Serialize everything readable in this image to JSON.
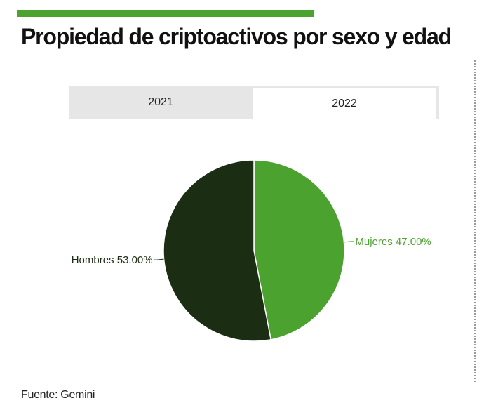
{
  "header": {
    "title": "Propiedad de criptoactivos por sexo y edad"
  },
  "tabs": [
    {
      "label": "2021",
      "active": false
    },
    {
      "label": "2022",
      "active": true
    }
  ],
  "colors": {
    "accent": "#4ba22f",
    "hombres": "#1b2e13",
    "mujeres": "#4ba22f",
    "tab_inactive_bg": "#e6e6e6"
  },
  "chart_data": {
    "type": "pie",
    "categories": [
      "Mujeres",
      "Hombres"
    ],
    "values": [
      47.0,
      53.0
    ],
    "labels": [
      "Mujeres 47.00%",
      "Hombres 53.00%"
    ],
    "colors": [
      "#4ba22f",
      "#1b2e13"
    ],
    "label_colors": [
      "#4ba22f",
      "#1b2e13"
    ],
    "start_angle": "top",
    "direction": "clockwise"
  },
  "footer": {
    "source": "Fuente: Gemini"
  }
}
